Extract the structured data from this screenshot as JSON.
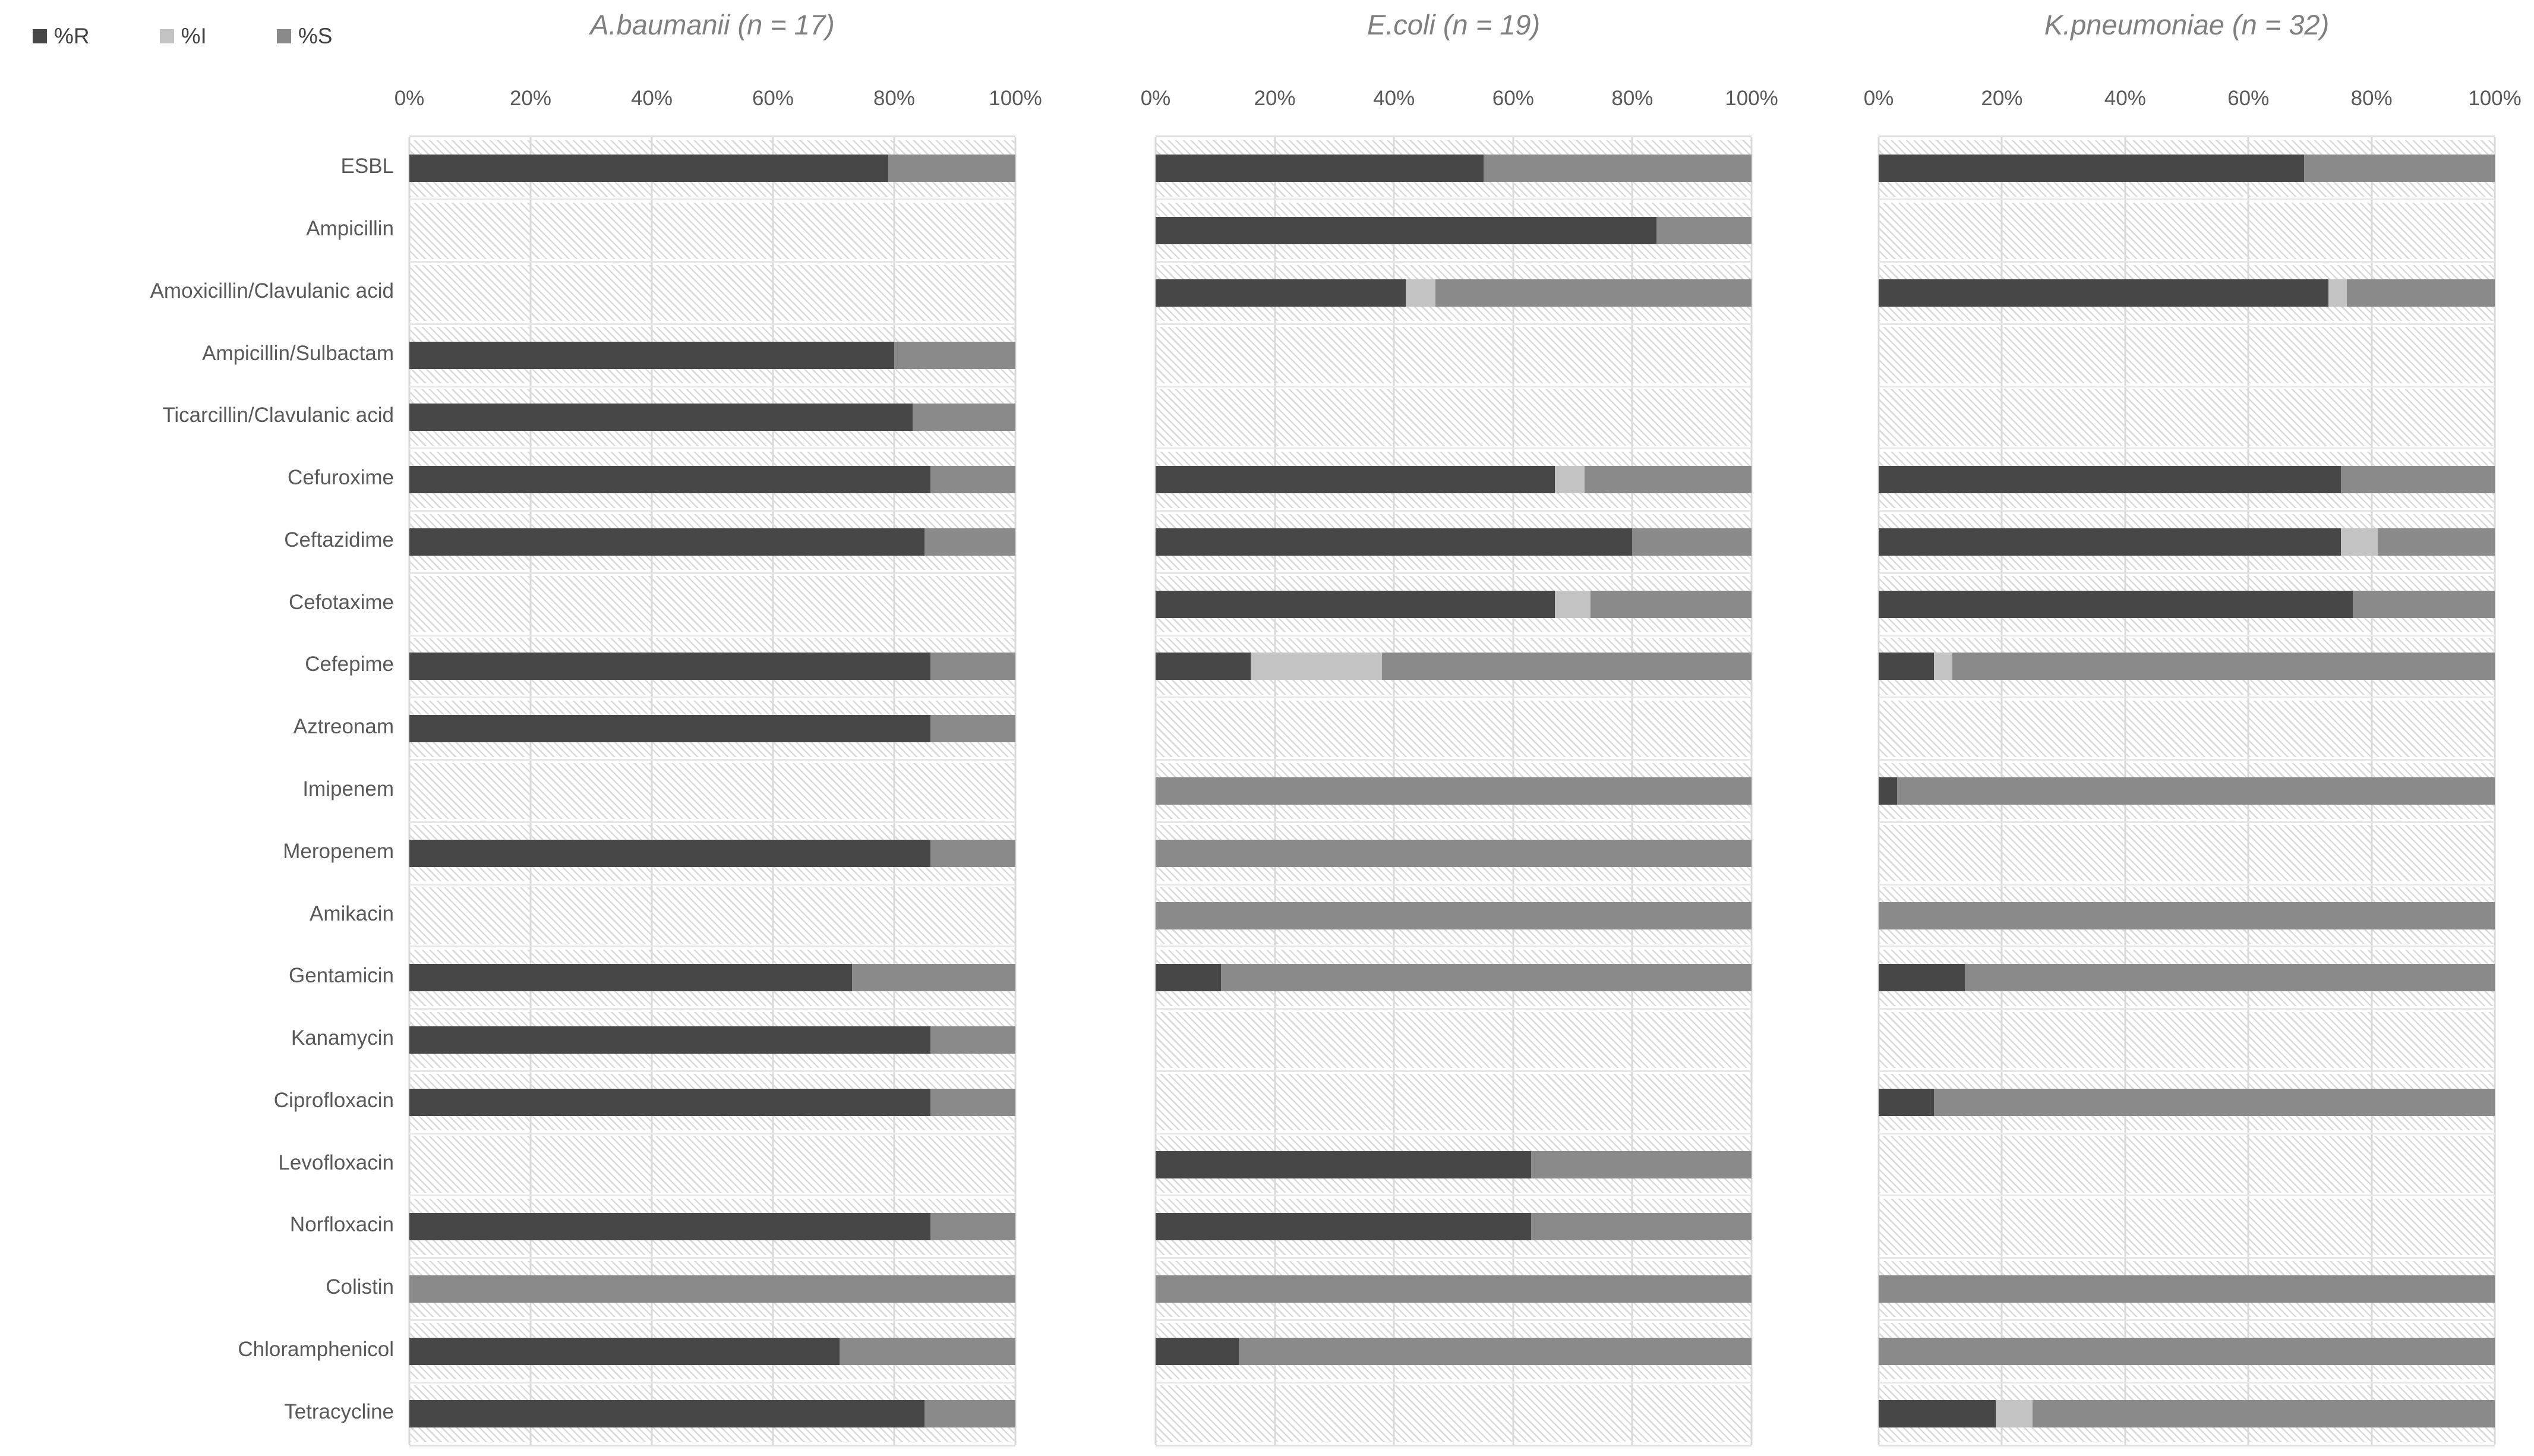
{
  "legend": {
    "items": [
      {
        "id": "r",
        "label": "%R",
        "color": "#474747"
      },
      {
        "id": "i",
        "label": "%I",
        "color": "#c3c3c3"
      },
      {
        "id": "s",
        "label": "%S",
        "color": "#8a8a8a"
      }
    ]
  },
  "chart_data": {
    "type": "bar",
    "orientation": "horizontal",
    "stacked": true,
    "units": "percent of isolates",
    "xlim": [
      0,
      100
    ],
    "x_ticks": [
      "0%",
      "20%",
      "40%",
      "60%",
      "80%",
      "100%"
    ],
    "grid": "vertical light-gray gridlines every 20%; hatched row background means antibiotic not tested / no data",
    "legend_entries": [
      "%R",
      "%I",
      "%S"
    ],
    "legend_position": "top-left",
    "categories": [
      "ESBL",
      "Ampicillin",
      "Amoxicillin/Clavulanic acid",
      "Ampicillin/Sulbactam",
      "Ticarcillin/Clavulanic acid",
      "Cefuroxime",
      "Ceftazidime",
      "Cefotaxime",
      "Cefepime",
      "Aztreonam",
      "Imipenem",
      "Meropenem",
      "Amikacin",
      "Gentamicin",
      "Kanamycin",
      "Ciprofloxacin",
      "Levofloxacin",
      "Norfloxacin",
      "Colistin",
      "Chloramphenicol",
      "Tetracycline"
    ],
    "panels": [
      {
        "title": "A.baumanii (n = 17)",
        "series": [
          {
            "name": "%R",
            "values": [
              79,
              null,
              null,
              80,
              83,
              86,
              85,
              null,
              86,
              86,
              null,
              86,
              null,
              73,
              86,
              86,
              null,
              86,
              0,
              71,
              85
            ]
          },
          {
            "name": "%I",
            "values": [
              0,
              null,
              null,
              0,
              0,
              0,
              0,
              null,
              0,
              0,
              null,
              0,
              null,
              0,
              0,
              0,
              null,
              0,
              0,
              0,
              0
            ]
          },
          {
            "name": "%S",
            "values": [
              21,
              null,
              null,
              20,
              17,
              14,
              15,
              null,
              14,
              14,
              null,
              14,
              null,
              27,
              14,
              14,
              null,
              14,
              100,
              29,
              15
            ]
          }
        ]
      },
      {
        "title": "E.coli (n = 19)",
        "series": [
          {
            "name": "%R",
            "values": [
              55,
              84,
              42,
              null,
              null,
              67,
              80,
              67,
              16,
              null,
              0,
              0,
              0,
              11,
              null,
              null,
              63,
              63,
              0,
              14,
              null
            ]
          },
          {
            "name": "%I",
            "values": [
              0,
              0,
              5,
              null,
              null,
              5,
              0,
              6,
              22,
              null,
              0,
              0,
              0,
              0,
              null,
              null,
              0,
              0,
              0,
              0,
              null
            ]
          },
          {
            "name": "%S",
            "values": [
              45,
              16,
              53,
              null,
              null,
              28,
              20,
              27,
              62,
              null,
              100,
              100,
              100,
              89,
              null,
              null,
              37,
              37,
              100,
              86,
              null
            ]
          }
        ]
      },
      {
        "title": "K.pneumoniae (n = 32)",
        "series": [
          {
            "name": "%R",
            "values": [
              69,
              null,
              73,
              null,
              null,
              75,
              75,
              77,
              9,
              null,
              3,
              null,
              0,
              14,
              null,
              9,
              null,
              null,
              0,
              0,
              19
            ]
          },
          {
            "name": "%I",
            "values": [
              0,
              null,
              3,
              null,
              null,
              0,
              6,
              0,
              3,
              null,
              0,
              null,
              0,
              0,
              null,
              0,
              null,
              null,
              0,
              0,
              6
            ]
          },
          {
            "name": "%S",
            "values": [
              31,
              null,
              24,
              null,
              null,
              25,
              19,
              23,
              88,
              null,
              97,
              null,
              100,
              86,
              null,
              91,
              null,
              null,
              100,
              100,
              75
            ]
          }
        ]
      }
    ]
  },
  "style": {
    "bar_colors": {
      "r": "#474747",
      "i": "#c3c3c3",
      "s": "#8a8a8a"
    },
    "gridline_color": "#d9d9d9",
    "hatch_line_color": "#dadada",
    "title_color": "#7f7f7f",
    "tick_label_color": "#595959",
    "category_label_color": "#595959",
    "legend_text_color": "#404040",
    "background": "#ffffff"
  }
}
